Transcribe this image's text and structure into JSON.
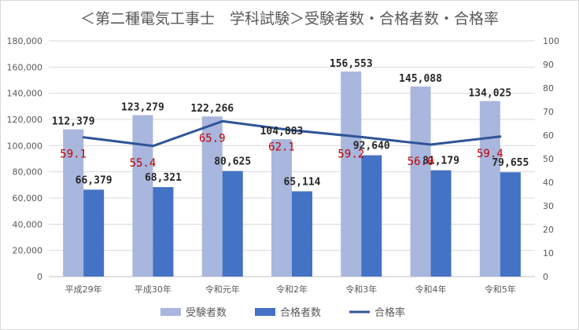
{
  "chart_data": {
    "type": "bar",
    "title": "＜第二種電気工事士　学科試験＞受験者数・合格者数・合格率",
    "categories": [
      "平成29年",
      "平成30年",
      "令和元年",
      "令和2年",
      "令和3年",
      "令和4年",
      "令和5年"
    ],
    "series": [
      {
        "name": "受験者数",
        "type": "bar",
        "axis": "left",
        "color": "#a9b6dd",
        "values": [
          112379,
          123279,
          122266,
          104883,
          156553,
          145088,
          134025
        ],
        "labels": [
          "112,379",
          "123,279",
          "122,266",
          "104,883",
          "156,553",
          "145,088",
          "134,025"
        ]
      },
      {
        "name": "合格者数",
        "type": "bar",
        "axis": "left",
        "color": "#4472c4",
        "values": [
          66379,
          68321,
          80625,
          65114,
          92640,
          81179,
          79655
        ],
        "labels": [
          "66,379",
          "68,321",
          "80,625",
          "65,114",
          "92,640",
          "81,179",
          "79,655"
        ]
      },
      {
        "name": "合格率",
        "type": "line",
        "axis": "right",
        "color": "#2f5597",
        "label_color": "#c00000",
        "values": [
          59.1,
          55.4,
          65.9,
          62.1,
          59.2,
          56.0,
          59.4
        ],
        "labels": [
          "59.1",
          "55.4",
          "65.9",
          "62.1",
          "59.2",
          "56.0",
          "59.4"
        ]
      }
    ],
    "y_left": {
      "range": [
        0,
        180000
      ],
      "ticks": [
        0,
        20000,
        40000,
        60000,
        80000,
        100000,
        120000,
        140000,
        160000,
        180000
      ],
      "tick_labels": [
        "0",
        "20,000",
        "40,000",
        "60,000",
        "80,000",
        "100,000",
        "120,000",
        "140,000",
        "160,000",
        "180,000"
      ]
    },
    "y_right": {
      "range": [
        0,
        100
      ],
      "ticks": [
        0,
        10,
        20,
        30,
        40,
        50,
        60,
        70,
        80,
        90,
        100
      ],
      "tick_labels": [
        "0",
        "10",
        "20",
        "30",
        "40",
        "50",
        "60",
        "70",
        "80",
        "90",
        "100"
      ]
    },
    "grid": true,
    "legend": "bottom"
  }
}
